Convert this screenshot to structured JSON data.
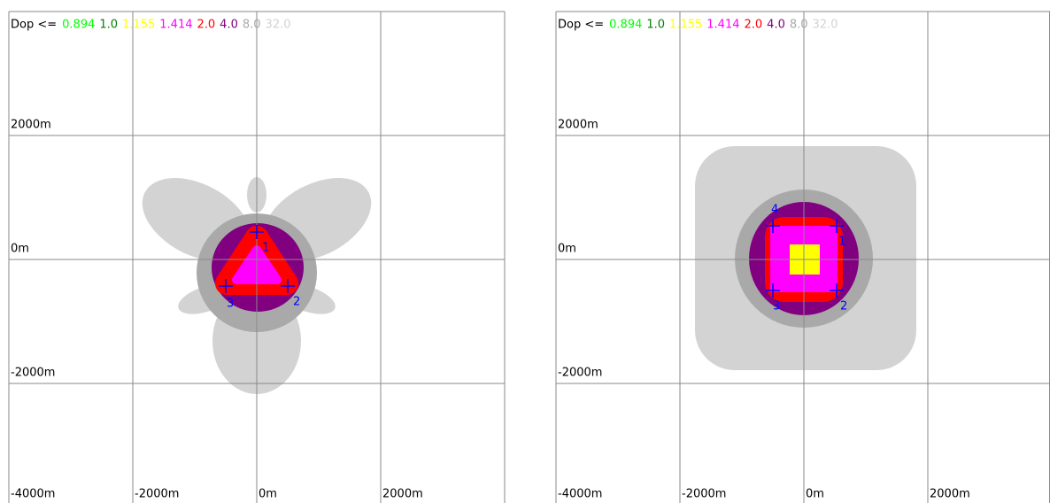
{
  "panels": [
    {
      "legend": {
        "label": "Dop <=",
        "thresholds": [
          {
            "text": "0.894",
            "color": "#00ff00"
          },
          {
            "text": "1.0",
            "color": "#008000"
          },
          {
            "text": "1.155",
            "color": "#ffff00"
          },
          {
            "text": "1.414",
            "color": "#ff00ff"
          },
          {
            "text": "2.0",
            "color": "#ff0000"
          },
          {
            "text": "4.0",
            "color": "#800080"
          },
          {
            "text": "8.0",
            "color": "#a9a9a9"
          },
          {
            "text": "32.0",
            "color": "#d3d3d3"
          }
        ]
      },
      "y_labels": [
        "2000m",
        "0m",
        "-2000m",
        "-4000m"
      ],
      "x_labels": [
        "-2000m",
        "0m",
        "2000m"
      ],
      "stations": [
        "1",
        "2",
        "3"
      ]
    },
    {
      "legend": {
        "label": "Dop <=",
        "thresholds": [
          {
            "text": "0.894",
            "color": "#00ff00"
          },
          {
            "text": "1.0",
            "color": "#008000"
          },
          {
            "text": "1.155",
            "color": "#ffff00"
          },
          {
            "text": "1.414",
            "color": "#ff00ff"
          },
          {
            "text": "2.0",
            "color": "#ff0000"
          },
          {
            "text": "4.0",
            "color": "#800080"
          },
          {
            "text": "8.0",
            "color": "#a9a9a9"
          },
          {
            "text": "32.0",
            "color": "#d3d3d3"
          }
        ]
      },
      "y_labels": [
        "2000m",
        "0m",
        "-2000m",
        "-4000m"
      ],
      "x_labels": [
        "-2000m",
        "0m",
        "2000m"
      ],
      "stations": [
        "1",
        "2",
        "3",
        "4"
      ]
    }
  ]
}
